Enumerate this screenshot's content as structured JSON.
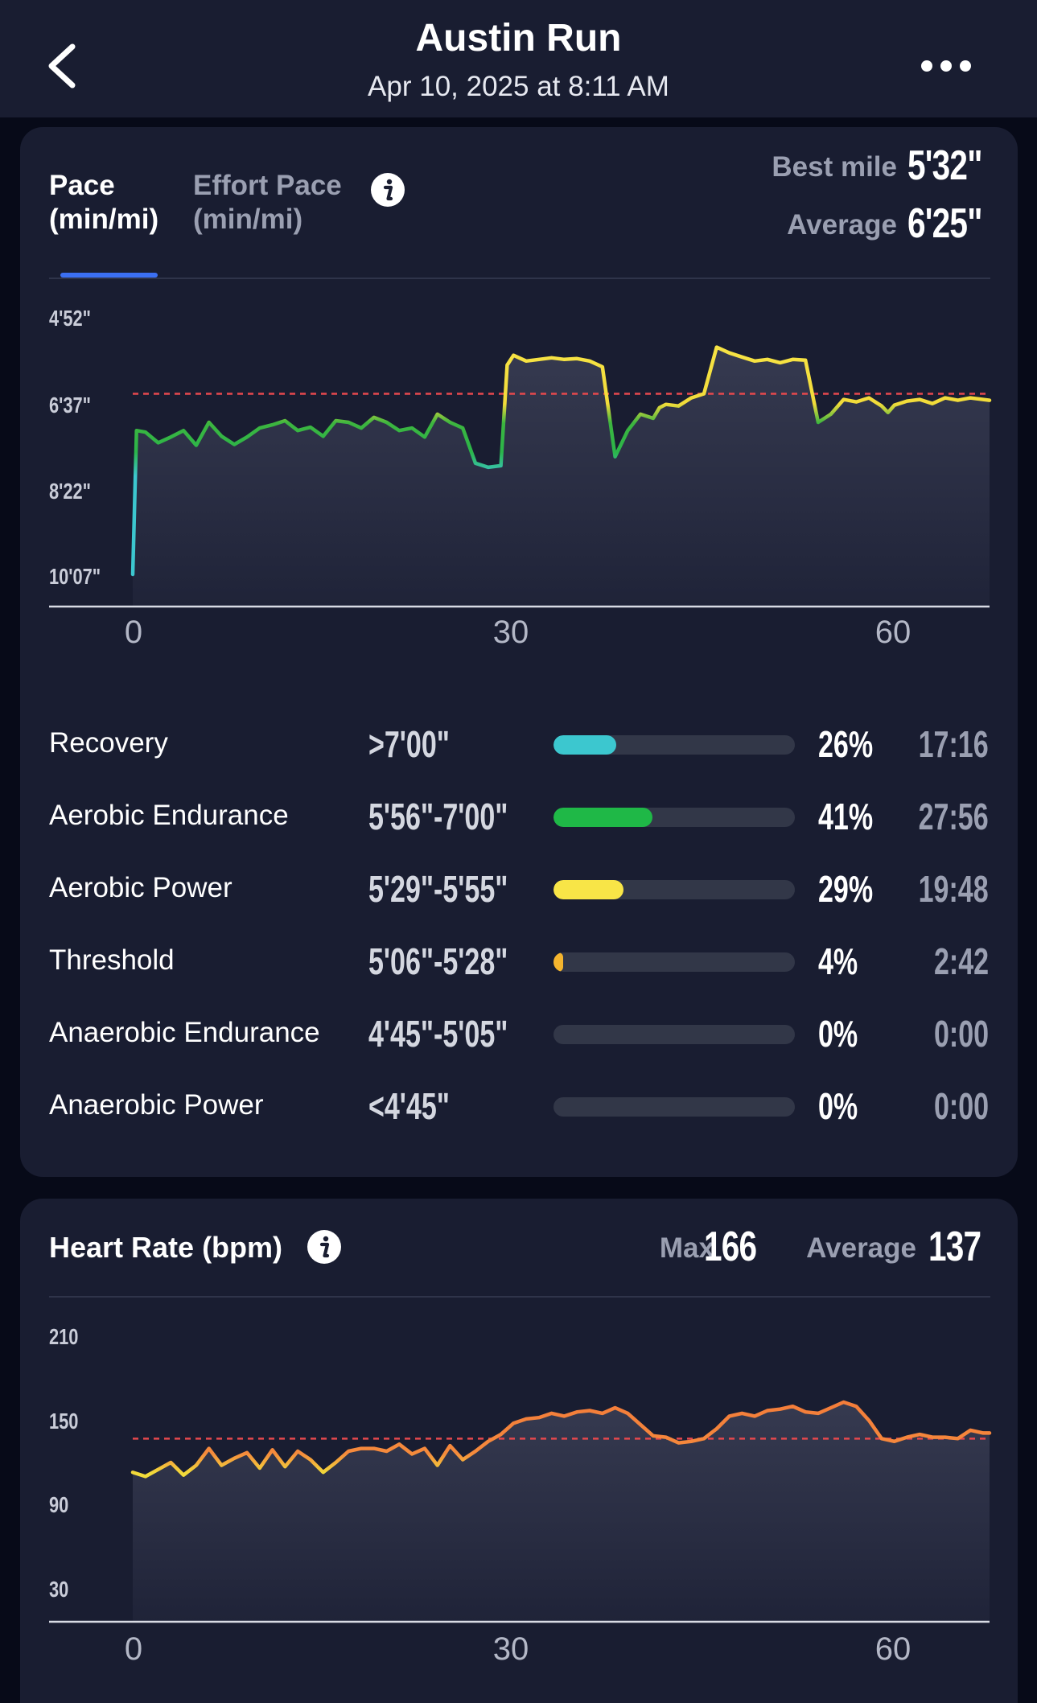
{
  "header": {
    "title": "Austin Run",
    "subtitle": "Apr 10, 2025 at 8:11 AM",
    "icons": {
      "back": "chevron-left-icon",
      "more": "ellipsis-icon"
    }
  },
  "pace_card": {
    "tabs": [
      {
        "line1": "Pace",
        "line2": "(min/mi)",
        "active": true
      },
      {
        "line1": "Effort Pace",
        "line2": "(min/mi)",
        "active": false
      }
    ],
    "stats": {
      "best_label": "Best mile",
      "best_value": "5'32\"",
      "average_label": "Average",
      "average_value": "6'25\""
    },
    "zones": [
      {
        "name": "Recovery",
        "range": ">7'00\"",
        "percent": "26%",
        "fraction": 0.26,
        "time": "17:16",
        "color": "#3cc7cf"
      },
      {
        "name": "Aerobic Endurance",
        "range": "5'56\"-7'00\"",
        "percent": "41%",
        "fraction": 0.41,
        "time": "27:56",
        "color": "#1fb847"
      },
      {
        "name": "Aerobic Power",
        "range": "5'29\"-5'55\"",
        "percent": "29%",
        "fraction": 0.29,
        "time": "19:48",
        "color": "#f8e547"
      },
      {
        "name": "Threshold",
        "range": "5'06\"-5'28\"",
        "percent": "4%",
        "fraction": 0.04,
        "time": "2:42",
        "color": "#f5b52e"
      },
      {
        "name": "Anaerobic Endurance",
        "range": "4'45\"-5'05\"",
        "percent": "0%",
        "fraction": 0,
        "time": "0:00",
        "color": "#f08a3c"
      },
      {
        "name": "Anaerobic Power",
        "range": "<4'45\"",
        "percent": "0%",
        "fraction": 0,
        "time": "0:00",
        "color": "#e5533b"
      }
    ]
  },
  "hr_card": {
    "title": "Heart Rate (bpm)",
    "max_label": "Max",
    "max_value": "166",
    "average_label": "Average",
    "average_value": "137"
  },
  "chart_data": [
    {
      "type": "line",
      "x_unit": "minutes",
      "y_unit": "seconds per mile",
      "y_ticks": [
        "4'52\"",
        "6'37\"",
        "8'22\"",
        "10'07\""
      ],
      "y_tick_values": [
        292,
        397,
        502,
        607
      ],
      "x_ticks": [
        "0",
        "30",
        "60"
      ],
      "x_tick_values": [
        0,
        30,
        60
      ],
      "xlim": [
        0,
        67.5
      ],
      "reference_line": 385,
      "reference_label": "Average",
      "x": [
        0,
        0.3,
        1,
        2,
        3,
        4,
        5,
        6,
        7,
        8,
        9,
        10,
        11,
        12,
        13,
        14,
        15,
        16,
        17,
        18,
        19,
        20,
        21,
        22,
        23,
        24,
        25,
        26,
        27,
        28,
        29,
        29.5,
        30,
        31,
        32,
        33,
        34,
        35,
        36,
        37,
        38,
        39,
        40,
        41,
        41.5,
        42,
        43,
        44,
        45,
        46,
        47,
        48,
        49,
        50,
        51,
        52,
        53,
        54,
        55,
        56,
        57,
        58,
        59,
        59.5,
        60,
        61,
        62,
        63,
        64,
        65,
        66,
        67,
        67.5
      ],
      "values": [
        606,
        430,
        432,
        445,
        438,
        430,
        448,
        420,
        437,
        447,
        438,
        427,
        423,
        418,
        430,
        426,
        437,
        418,
        420,
        427,
        414,
        420,
        430,
        427,
        438,
        410,
        420,
        427,
        470,
        475,
        473,
        350,
        338,
        345,
        343,
        341,
        343,
        342,
        345,
        352,
        462,
        430,
        410,
        415,
        402,
        398,
        400,
        390,
        385,
        328,
        335,
        340,
        345,
        343,
        347,
        343,
        344,
        420,
        410,
        392,
        395,
        390,
        400,
        408,
        399,
        394,
        392,
        397,
        390,
        393,
        390,
        392,
        393
      ]
    },
    {
      "type": "line",
      "x_unit": "minutes",
      "y_unit": "bpm",
      "y_ticks": [
        "210",
        "150",
        "90",
        "30"
      ],
      "y_tick_values": [
        210,
        150,
        90,
        30
      ],
      "x_ticks": [
        "0",
        "30",
        "60"
      ],
      "x_tick_values": [
        0,
        30,
        60
      ],
      "xlim": [
        0,
        67.5
      ],
      "reference_line": 137,
      "reference_label": "Average",
      "x": [
        0,
        1,
        2,
        3,
        4,
        5,
        6,
        7,
        8,
        9,
        10,
        11,
        12,
        13,
        14,
        15,
        16,
        17,
        18,
        19,
        20,
        21,
        22,
        23,
        24,
        25,
        26,
        27,
        28,
        29,
        30,
        31,
        32,
        33,
        34,
        35,
        36,
        37,
        38,
        39,
        40,
        41,
        42,
        43,
        44,
        45,
        46,
        47,
        48,
        49,
        50,
        51,
        52,
        53,
        54,
        55,
        56,
        57,
        58,
        59,
        60,
        61,
        62,
        63,
        64,
        65,
        66,
        67,
        67.5
      ],
      "values": [
        113,
        110,
        115,
        120,
        111,
        118,
        130,
        118,
        123,
        127,
        116,
        129,
        117,
        128,
        122,
        113,
        120,
        128,
        130,
        130,
        128,
        133,
        126,
        130,
        118,
        132,
        122,
        128,
        135,
        140,
        148,
        151,
        152,
        155,
        153,
        156,
        157,
        155,
        159,
        155,
        147,
        139,
        138,
        134,
        135,
        137,
        144,
        153,
        155,
        153,
        157,
        158,
        160,
        156,
        155,
        159,
        163,
        160,
        150,
        137,
        135,
        138,
        140,
        138,
        138,
        137,
        143,
        141,
        141
      ]
    }
  ]
}
